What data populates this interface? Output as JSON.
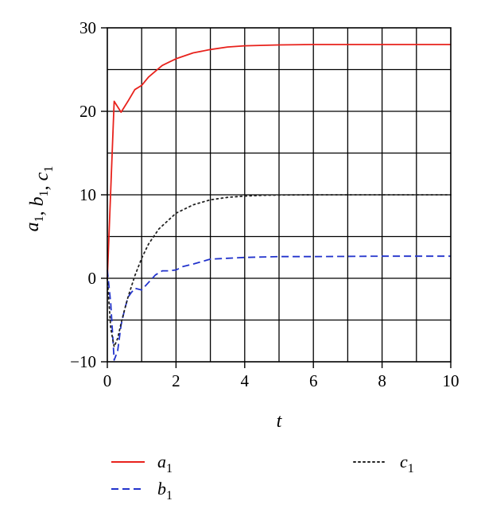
{
  "chart_data": {
    "type": "line",
    "title": "",
    "xlabel": "t",
    "ylabel": {
      "parts": [
        {
          "base": "a",
          "sub": "1"
        },
        {
          "sep": ", "
        },
        {
          "base": "b",
          "sub": "1"
        },
        {
          "sep": ", "
        },
        {
          "base": "c",
          "sub": "1"
        }
      ]
    },
    "xlim": [
      0,
      10
    ],
    "ylim": [
      -10,
      30
    ],
    "grid": true,
    "legend_position": "bottom",
    "xticks": [
      0,
      2,
      4,
      6,
      8,
      10
    ],
    "yticks": [
      -10,
      0,
      10,
      20,
      30
    ],
    "xtick_labels": [
      "0",
      "2",
      "4",
      "6",
      "8",
      "10"
    ],
    "ytick_labels": [
      "−10",
      "0",
      "10",
      "20",
      "30"
    ],
    "series": [
      {
        "name_base": "a",
        "name_sub": "1",
        "color": "#e8221c",
        "dash": "solid",
        "x": [
          0,
          0.2,
          0.4,
          0.6,
          0.8,
          1.0,
          1.2,
          1.4,
          1.6,
          1.8,
          2.0,
          2.5,
          3.0,
          3.5,
          4.0,
          5.0,
          6.0,
          7.0,
          8.0,
          9.0,
          10.0
        ],
        "y": [
          0,
          21.2,
          19.9,
          21.2,
          22.6,
          23.1,
          24.1,
          24.8,
          25.5,
          25.9,
          26.3,
          27.0,
          27.4,
          27.7,
          27.85,
          27.95,
          28.0,
          28.0,
          28.0,
          28.0,
          28.0
        ]
      },
      {
        "name_base": "b",
        "name_sub": "1",
        "color": "#2233cc",
        "dash": "dashed",
        "x": [
          0,
          0.1,
          0.2,
          0.3,
          0.4,
          0.5,
          0.6,
          0.7,
          0.8,
          0.9,
          1.0,
          1.2,
          1.4,
          1.6,
          1.8,
          2.0,
          2.2,
          2.5,
          3.0,
          4.0,
          5.0,
          6.0,
          8.0,
          10.0
        ],
        "y": [
          1.0,
          -3.0,
          -9.8,
          -8.7,
          -5.6,
          -3.8,
          -2.3,
          -1.7,
          -1.2,
          -1.3,
          -1.4,
          -0.5,
          0.4,
          0.9,
          0.9,
          1.0,
          1.4,
          1.7,
          2.3,
          2.5,
          2.6,
          2.6,
          2.65,
          2.65
        ]
      },
      {
        "name_base": "c",
        "name_sub": "1",
        "color": "#222222",
        "dash": "dotted",
        "x": [
          0,
          0.1,
          0.2,
          0.3,
          0.4,
          0.5,
          0.6,
          0.8,
          1.0,
          1.2,
          1.5,
          2.0,
          2.5,
          3.0,
          3.5,
          4.0,
          4.5,
          5.0,
          6.0,
          8.0,
          10.0
        ],
        "y": [
          0,
          -6.0,
          -8.2,
          -7.2,
          -5.4,
          -3.8,
          -2.3,
          0.3,
          2.4,
          4.1,
          5.9,
          7.8,
          8.8,
          9.4,
          9.7,
          9.85,
          9.93,
          9.97,
          10.0,
          10.0,
          10.0
        ]
      }
    ]
  }
}
